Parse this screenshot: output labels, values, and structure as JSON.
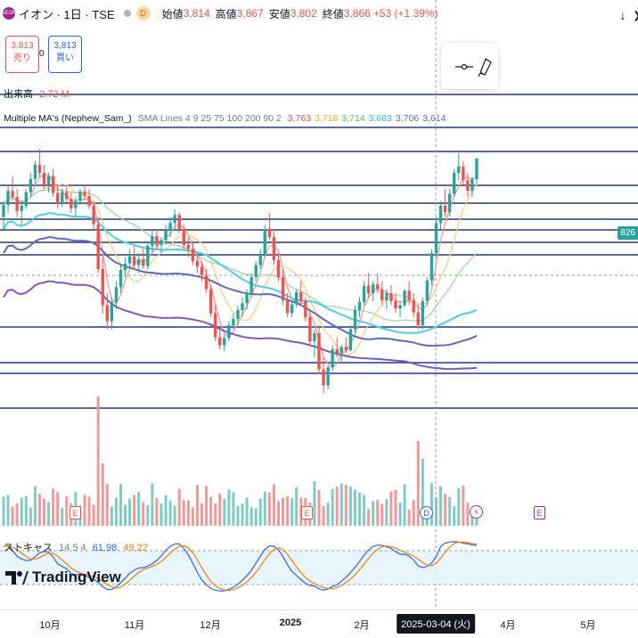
{
  "header": {
    "logo_text": "AEON",
    "symbol": "イオン · 1日 · TSE",
    "badge": "D",
    "open_label": "始値",
    "open": "3,814",
    "high_label": "高値",
    "high": "3,867",
    "low_label": "安値",
    "low": "3,802",
    "close_label": "終値",
    "close": "3,866",
    "change": "+53 (+1.39%)",
    "down_arrow": "↓",
    "collapse": "❯"
  },
  "trade": {
    "sell_price": "3,813",
    "sell_label": "売り",
    "buy_price": "3,813",
    "buy_label": "買い",
    "spread": "0"
  },
  "volume_legend": {
    "label": "出来高",
    "value": "2.72 M"
  },
  "ma_legend": {
    "name": "Multiple MA's (Nephew_Sam_)",
    "params": "SMA Lines 4 9 25 75 100 200 90 2",
    "values": [
      {
        "v": "3,763",
        "color": "#ef5350"
      },
      {
        "v": "3,718",
        "color": "#f9a825"
      },
      {
        "v": "3,714",
        "color": "#66bb6a"
      },
      {
        "v": "3,683",
        "color": "#26c6da"
      },
      {
        "v": "3,706",
        "color": "#5c6bc0"
      },
      {
        "v": "3,614",
        "color": "#7e57c2"
      }
    ]
  },
  "stoch_legend": {
    "label": "ストキャス",
    "params": "14 5 4",
    "k": "61.98",
    "d": "49.22",
    "k_color": "#2962ff",
    "d_color": "#f57c00"
  },
  "brand": "TradingView",
  "price_tags": [
    {
      "text": "826",
      "color": "#26a69a"
    }
  ],
  "events": [
    "E",
    "E",
    "D",
    "E"
  ],
  "chart_data": {
    "type": "candlestick",
    "x_labels": [
      "10月",
      "11月",
      "12月",
      "2025",
      "2月",
      "2025-03-04 (火)",
      "4月",
      "5月"
    ],
    "highlighted_x_label": "2025-03-04 (火)",
    "close_last": 3866,
    "candles_approx": [
      [
        3720,
        3760,
        3690,
        3750
      ],
      [
        3750,
        3800,
        3730,
        3785
      ],
      [
        3785,
        3820,
        3760,
        3770
      ],
      [
        3770,
        3790,
        3720,
        3735
      ],
      [
        3735,
        3760,
        3700,
        3748
      ],
      [
        3748,
        3790,
        3740,
        3782
      ],
      [
        3782,
        3830,
        3770,
        3815
      ],
      [
        3815,
        3860,
        3800,
        3850
      ],
      [
        3850,
        3890,
        3820,
        3830
      ],
      [
        3830,
        3850,
        3790,
        3800
      ],
      [
        3800,
        3830,
        3780,
        3822
      ],
      [
        3822,
        3840,
        3770,
        3780
      ],
      [
        3780,
        3800,
        3740,
        3755
      ],
      [
        3755,
        3790,
        3745,
        3782
      ],
      [
        3782,
        3800,
        3755,
        3765
      ],
      [
        3765,
        3780,
        3730,
        3742
      ],
      [
        3742,
        3770,
        3720,
        3760
      ],
      [
        3760,
        3790,
        3750,
        3784
      ],
      [
        3784,
        3800,
        3760,
        3772
      ],
      [
        3772,
        3790,
        3740,
        3748
      ],
      [
        3748,
        3760,
        3690,
        3702
      ],
      [
        3702,
        3720,
        3580,
        3590
      ],
      [
        3590,
        3620,
        3480,
        3500
      ],
      [
        3500,
        3530,
        3440,
        3460
      ],
      [
        3460,
        3520,
        3440,
        3508
      ],
      [
        3508,
        3560,
        3490,
        3545
      ],
      [
        3545,
        3600,
        3530,
        3588
      ],
      [
        3588,
        3620,
        3570,
        3604
      ],
      [
        3604,
        3640,
        3590,
        3622
      ],
      [
        3622,
        3650,
        3590,
        3600
      ],
      [
        3600,
        3630,
        3580,
        3615
      ],
      [
        3615,
        3640,
        3590,
        3598
      ],
      [
        3598,
        3660,
        3590,
        3648
      ],
      [
        3648,
        3690,
        3630,
        3672
      ],
      [
        3672,
        3690,
        3640,
        3650
      ],
      [
        3650,
        3670,
        3630,
        3662
      ],
      [
        3662,
        3700,
        3650,
        3688
      ],
      [
        3688,
        3720,
        3670,
        3705
      ],
      [
        3705,
        3740,
        3690,
        3725
      ],
      [
        3725,
        3730,
        3680,
        3690
      ],
      [
        3690,
        3700,
        3640,
        3650
      ],
      [
        3650,
        3670,
        3620,
        3640
      ],
      [
        3640,
        3660,
        3600,
        3610
      ],
      [
        3610,
        3630,
        3580,
        3596
      ],
      [
        3596,
        3610,
        3560,
        3575
      ],
      [
        3575,
        3590,
        3530,
        3540
      ],
      [
        3540,
        3550,
        3470,
        3480
      ],
      [
        3480,
        3500,
        3410,
        3420
      ],
      [
        3420,
        3440,
        3390,
        3400
      ],
      [
        3400,
        3430,
        3385,
        3418
      ],
      [
        3418,
        3460,
        3410,
        3450
      ],
      [
        3450,
        3480,
        3440,
        3466
      ],
      [
        3466,
        3500,
        3450,
        3488
      ],
      [
        3488,
        3520,
        3470,
        3505
      ],
      [
        3505,
        3540,
        3490,
        3530
      ],
      [
        3530,
        3580,
        3520,
        3570
      ],
      [
        3570,
        3610,
        3560,
        3600
      ],
      [
        3600,
        3640,
        3590,
        3628
      ],
      [
        3628,
        3700,
        3620,
        3690
      ],
      [
        3690,
        3730,
        3660,
        3670
      ],
      [
        3670,
        3690,
        3600,
        3612
      ],
      [
        3612,
        3630,
        3560,
        3570
      ],
      [
        3570,
        3590,
        3500,
        3512
      ],
      [
        3512,
        3530,
        3470,
        3480
      ],
      [
        3480,
        3510,
        3470,
        3502
      ],
      [
        3502,
        3540,
        3495,
        3532
      ],
      [
        3532,
        3560,
        3500,
        3510
      ],
      [
        3510,
        3520,
        3460,
        3470
      ],
      [
        3470,
        3480,
        3400,
        3410
      ],
      [
        3410,
        3440,
        3370,
        3430
      ],
      [
        3430,
        3450,
        3330,
        3340
      ],
      [
        3340,
        3370,
        3280,
        3300
      ],
      [
        3300,
        3350,
        3290,
        3345
      ],
      [
        3345,
        3400,
        3335,
        3390
      ],
      [
        3390,
        3420,
        3370,
        3380
      ],
      [
        3380,
        3400,
        3360,
        3396
      ],
      [
        3396,
        3420,
        3380,
        3388
      ],
      [
        3388,
        3450,
        3385,
        3440
      ],
      [
        3440,
        3500,
        3430,
        3488
      ],
      [
        3488,
        3520,
        3470,
        3508
      ],
      [
        3508,
        3560,
        3500,
        3548
      ],
      [
        3548,
        3580,
        3520,
        3530
      ],
      [
        3530,
        3560,
        3510,
        3552
      ],
      [
        3552,
        3580,
        3530,
        3540
      ],
      [
        3540,
        3560,
        3500,
        3512
      ],
      [
        3512,
        3540,
        3490,
        3530
      ],
      [
        3530,
        3550,
        3500,
        3510
      ],
      [
        3510,
        3530,
        3480,
        3492
      ],
      [
        3492,
        3510,
        3470,
        3500
      ],
      [
        3500,
        3540,
        3495,
        3536
      ],
      [
        3536,
        3560,
        3500,
        3512
      ],
      [
        3512,
        3530,
        3470,
        3482
      ],
      [
        3482,
        3500,
        3440,
        3450
      ],
      [
        3450,
        3520,
        3440,
        3510
      ],
      [
        3510,
        3570,
        3500,
        3562
      ],
      [
        3562,
        3640,
        3550,
        3630
      ],
      [
        3630,
        3720,
        3620,
        3705
      ],
      [
        3705,
        3760,
        3690,
        3748
      ],
      [
        3748,
        3790,
        3720,
        3732
      ],
      [
        3732,
        3790,
        3720,
        3778
      ],
      [
        3778,
        3840,
        3770,
        3830
      ],
      [
        3830,
        3880,
        3810,
        3846
      ],
      [
        3846,
        3860,
        3800,
        3812
      ],
      [
        3812,
        3830,
        3770,
        3785
      ],
      [
        3785,
        3820,
        3770,
        3814
      ],
      [
        3814,
        3867,
        3802,
        3866
      ]
    ]
  }
}
